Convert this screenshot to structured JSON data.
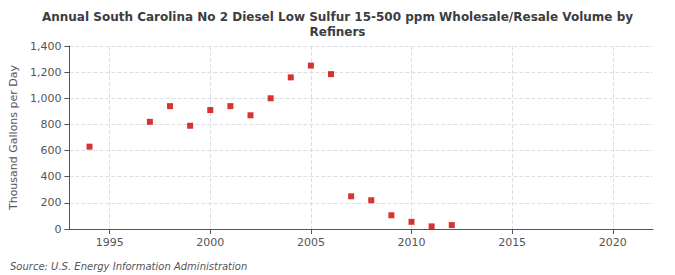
{
  "chart_data": {
    "type": "scatter",
    "title": "Annual South Carolina No 2 Diesel Low Sulfur 15-500 ppm Wholesale/Resale Volume by\nRefiners",
    "ylabel": "Thousand Gallons per Day",
    "annotations": [
      "Source: U.S. Energy Information Administration"
    ],
    "x": [
      1994,
      1997,
      1998,
      1999,
      2000,
      2001,
      2002,
      2003,
      2004,
      2005,
      2006,
      2007,
      2008,
      2009,
      2010,
      2011,
      2012
    ],
    "values": [
      630,
      820,
      940,
      790,
      910,
      940,
      870,
      1000,
      1160,
      1250,
      1185,
      250,
      220,
      105,
      55,
      20,
      30
    ],
    "color": "#cc0000",
    "marker": "square",
    "xlim": [
      1993,
      2022
    ],
    "xticks": [
      1995,
      2000,
      2005,
      2010,
      2015,
      2020
    ],
    "ylim": [
      0,
      1400
    ],
    "yticks": [
      0,
      200,
      400,
      600,
      800,
      {
        "value": 1000,
        "label": "1,000"
      },
      {
        "value": 1200,
        "label": "1,200"
      },
      {
        "value": 1400,
        "label": "1,400"
      }
    ],
    "grid": true
  }
}
